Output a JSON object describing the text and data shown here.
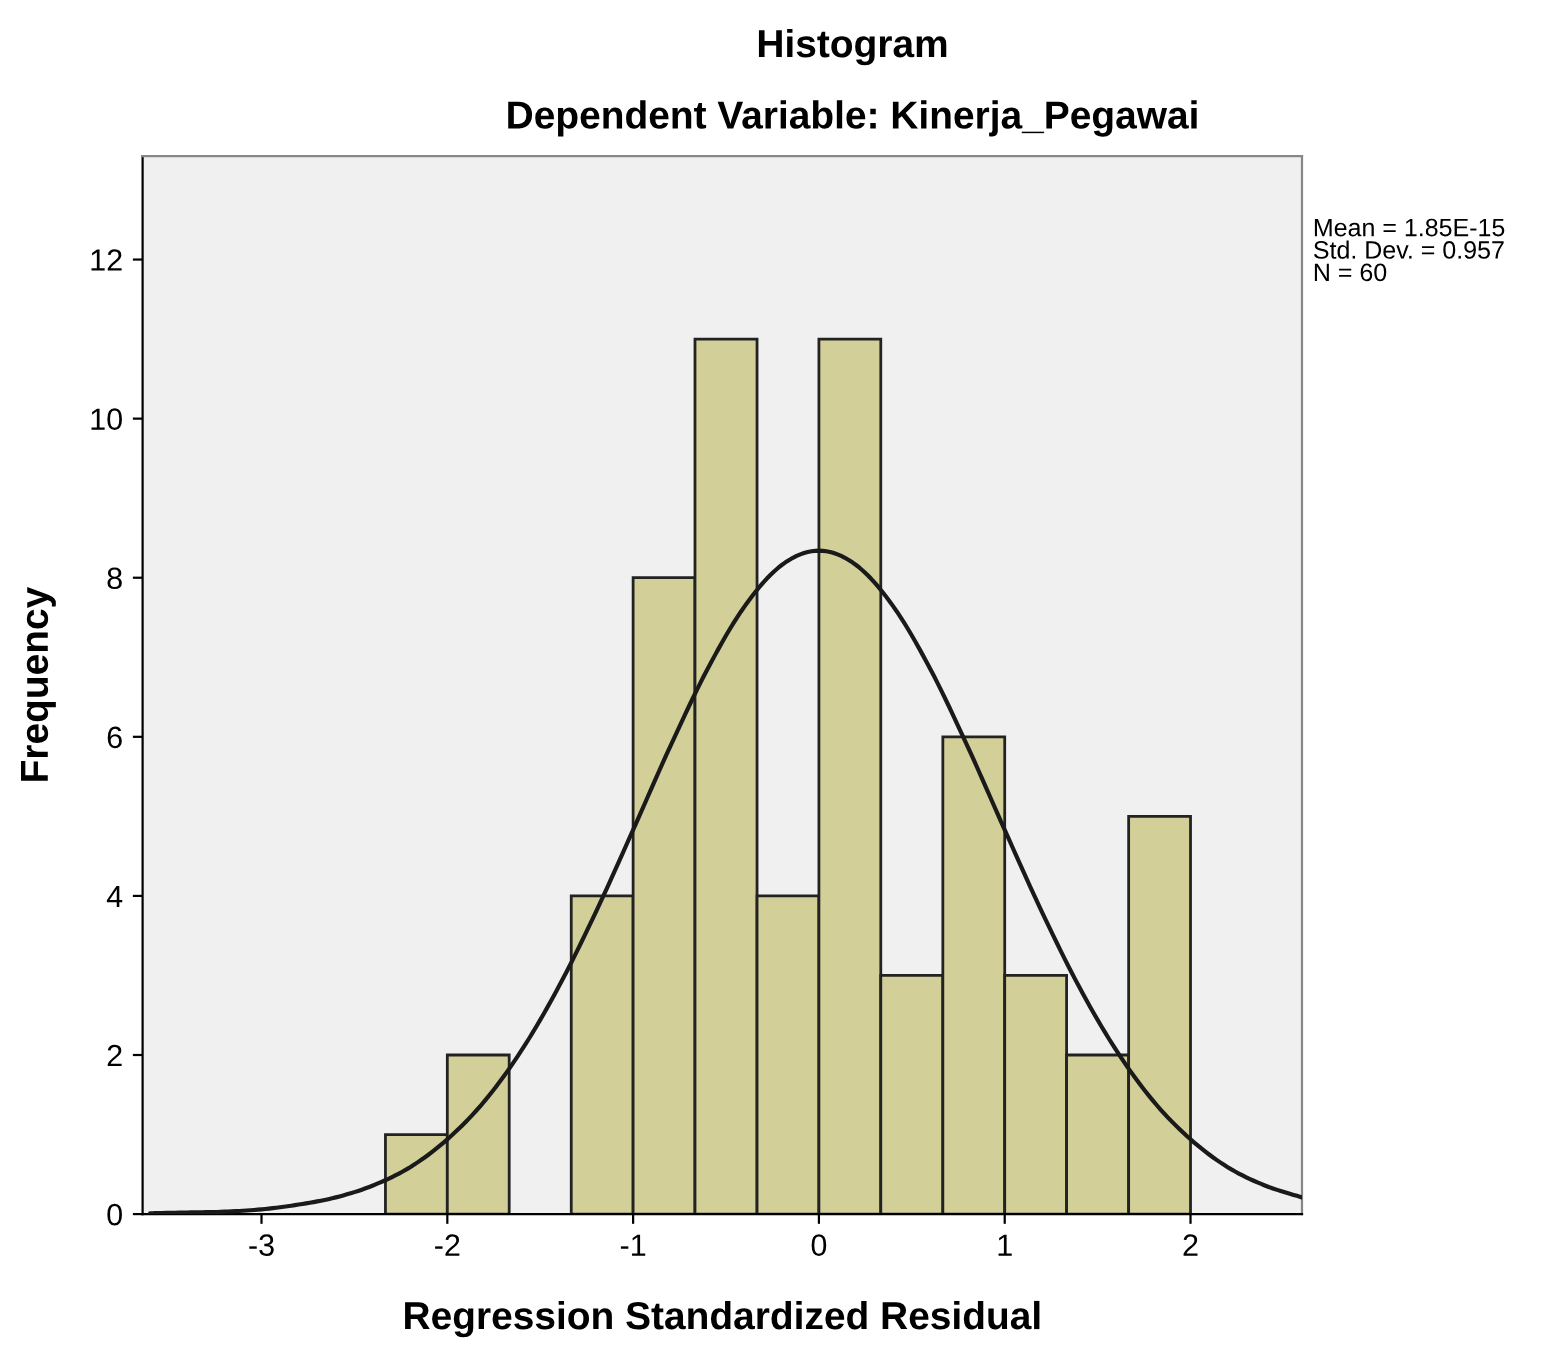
{
  "chart_data": {
    "type": "histogram",
    "title": "Histogram",
    "subtitle": "Dependent Variable: Kinerja_Pegawai",
    "xlabel": "Regression Standardized Residual",
    "ylabel": "Frequency",
    "bins": [
      -2.333,
      -2,
      -1.667,
      -1.333,
      -1,
      -0.667,
      -0.333,
      0,
      0.333,
      0.667,
      1,
      1.333,
      1.667,
      2
    ],
    "values": [
      1,
      2,
      0,
      4,
      8,
      11,
      4,
      11,
      3,
      6,
      3,
      2,
      5
    ],
    "color": "#d3cf98",
    "series": [
      {
        "type": "line",
        "color": "#1a1a1a",
        "x": [
          -3.6,
          -3.4,
          -3.2,
          -3.0,
          -2.8,
          -2.6,
          -2.4,
          -2.2,
          -2.0,
          -1.8,
          -1.6,
          -1.4,
          -1.2,
          -1.0,
          -0.8,
          -0.6,
          -0.4,
          -0.2,
          0,
          0.2,
          0.4,
          0.6,
          0.8,
          1.0,
          1.2,
          1.4,
          1.6,
          1.8,
          2.0,
          2.2,
          2.4,
          2.6
        ],
        "values": [
          0.01,
          0.02,
          0.03,
          0.06,
          0.12,
          0.21,
          0.36,
          0.59,
          0.94,
          1.42,
          2.06,
          2.86,
          3.8,
          4.83,
          5.88,
          6.85,
          7.64,
          8.16,
          8.34,
          8.16,
          7.64,
          6.85,
          5.88,
          4.83,
          3.8,
          2.86,
          2.06,
          1.42,
          0.94,
          0.59,
          0.36,
          0.21
        ]
      }
    ],
    "xlim": [
      -3.64,
      2.6
    ],
    "ylim": [
      0,
      13.3
    ],
    "xticks": [
      -3,
      -2,
      -1,
      0,
      1,
      2
    ],
    "yticks": [
      0,
      2,
      4,
      6,
      8,
      10,
      12
    ],
    "grid": false,
    "legend": false,
    "annotations": [
      "Mean = 1.85E-15\nStd. Dev. = 0.957\nN = 60"
    ]
  }
}
